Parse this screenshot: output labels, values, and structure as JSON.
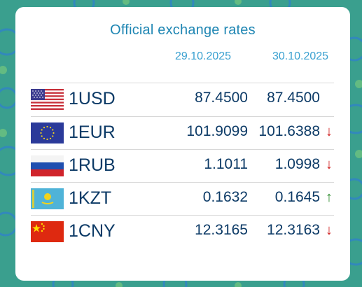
{
  "header": {
    "title": "Official exchange rates",
    "date_prev": "29.10.2025",
    "date_curr": "30.10.2025"
  },
  "colors": {
    "background": "#3aa08f",
    "title": "#1f86b3",
    "value_text": "#0c3a66",
    "arrow_down": "#d02020",
    "arrow_up": "#2a8a2a"
  },
  "rates": [
    {
      "code": "1USD",
      "flag": "us-flag-icon",
      "prev": "87.4500",
      "curr": "87.4500",
      "arrow": "",
      "trend": "none"
    },
    {
      "code": "1EUR",
      "flag": "eu-flag-icon",
      "prev": "101.9099",
      "curr": "101.6388",
      "arrow": "↓",
      "trend": "down"
    },
    {
      "code": "1RUB",
      "flag": "ru-flag-icon",
      "prev": "1.1011",
      "curr": "1.0998",
      "arrow": "↓",
      "trend": "down"
    },
    {
      "code": "1KZT",
      "flag": "kz-flag-icon",
      "prev": "0.1632",
      "curr": "0.1645",
      "arrow": "↑",
      "trend": "up"
    },
    {
      "code": "1CNY",
      "flag": "cn-flag-icon",
      "prev": "12.3165",
      "curr": "12.3163",
      "arrow": "↓",
      "trend": "down"
    }
  ]
}
